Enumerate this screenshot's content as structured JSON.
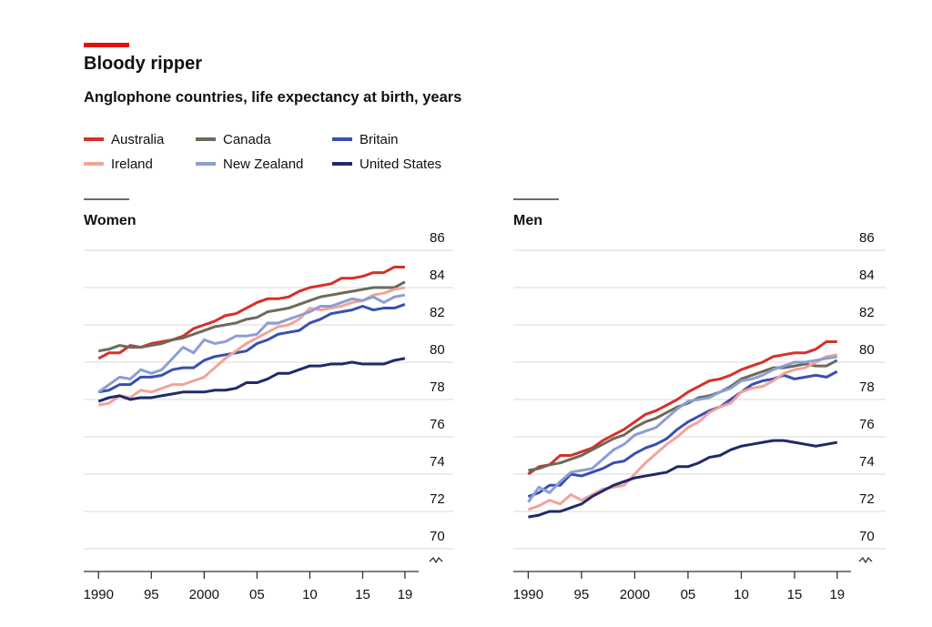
{
  "header": {
    "title": "Bloody ripper",
    "subtitle": "Anglophone countries, life expectancy at birth, years"
  },
  "chart_data": [
    {
      "type": "line",
      "title": "Women",
      "x": [
        1990,
        1991,
        1992,
        1993,
        1994,
        1995,
        1996,
        1997,
        1998,
        1999,
        2000,
        2001,
        2002,
        2003,
        2004,
        2005,
        2006,
        2007,
        2008,
        2009,
        2010,
        2011,
        2012,
        2013,
        2014,
        2015,
        2016,
        2017,
        2018,
        2019
      ],
      "xlim": [
        1988.6,
        2020.3
      ],
      "xticks": [
        1990,
        {
          "value": 1995,
          "label": "95"
        },
        2000,
        {
          "value": 2005,
          "label": "05"
        },
        {
          "value": 2010,
          "label": "10"
        },
        {
          "value": 2015,
          "label": "15"
        },
        {
          "value": 2019,
          "label": "19"
        }
      ],
      "ylim": [
        70,
        86
      ],
      "yticks": [
        70,
        72,
        74,
        76,
        78,
        80,
        82,
        84,
        86
      ],
      "grid": true,
      "series": [
        {
          "name": "Australia",
          "color": "#d7302a",
          "values": [
            80.2,
            80.5,
            80.5,
            80.9,
            80.8,
            81.0,
            81.1,
            81.2,
            81.4,
            81.8,
            82.0,
            82.2,
            82.5,
            82.6,
            82.9,
            83.2,
            83.4,
            83.4,
            83.5,
            83.8,
            84.0,
            84.1,
            84.2,
            84.5,
            84.5,
            84.6,
            84.8,
            84.8,
            85.1,
            85.1
          ]
        },
        {
          "name": "Canada",
          "color": "#6b6a5c",
          "values": [
            80.6,
            80.7,
            80.9,
            80.8,
            80.8,
            80.9,
            81.0,
            81.2,
            81.3,
            81.5,
            81.7,
            81.9,
            82.0,
            82.1,
            82.3,
            82.4,
            82.7,
            82.8,
            82.9,
            83.1,
            83.3,
            83.5,
            83.6,
            83.7,
            83.8,
            83.9,
            84.0,
            84.0,
            84.0,
            84.3
          ]
        },
        {
          "name": "Britain",
          "color": "#3a4fb0",
          "values": [
            78.4,
            78.5,
            78.8,
            78.8,
            79.2,
            79.2,
            79.3,
            79.6,
            79.7,
            79.7,
            80.1,
            80.3,
            80.4,
            80.5,
            80.6,
            81.0,
            81.2,
            81.5,
            81.6,
            81.7,
            82.1,
            82.3,
            82.6,
            82.7,
            82.8,
            83.0,
            82.8,
            82.9,
            82.9,
            83.1
          ]
        },
        {
          "name": "Ireland",
          "color": "#f2a39a",
          "values": [
            77.7,
            77.8,
            78.2,
            78.1,
            78.5,
            78.4,
            78.6,
            78.8,
            78.8,
            79.0,
            79.2,
            79.7,
            80.2,
            80.6,
            81.0,
            81.3,
            81.6,
            81.9,
            82.0,
            82.3,
            82.9,
            82.8,
            82.9,
            83.0,
            83.2,
            83.3,
            83.6,
            83.7,
            83.9,
            84.0
          ]
        },
        {
          "name": "New Zealand",
          "color": "#8b9fd3",
          "values": [
            78.4,
            78.8,
            79.2,
            79.1,
            79.6,
            79.4,
            79.6,
            80.2,
            80.8,
            80.5,
            81.2,
            81.0,
            81.1,
            81.4,
            81.4,
            81.5,
            82.1,
            82.1,
            82.3,
            82.5,
            82.7,
            83.0,
            83.0,
            83.2,
            83.4,
            83.3,
            83.5,
            83.2,
            83.5,
            83.6
          ]
        },
        {
          "name": "United States",
          "color": "#1f2a6b",
          "values": [
            77.9,
            78.1,
            78.2,
            78.0,
            78.1,
            78.1,
            78.2,
            78.3,
            78.4,
            78.4,
            78.4,
            78.5,
            78.5,
            78.6,
            78.9,
            78.9,
            79.1,
            79.4,
            79.4,
            79.6,
            79.8,
            79.8,
            79.9,
            79.9,
            80.0,
            79.9,
            79.9,
            79.9,
            80.1,
            80.2
          ]
        }
      ]
    },
    {
      "type": "line",
      "title": "Men",
      "x": [
        1990,
        1991,
        1992,
        1993,
        1994,
        1995,
        1996,
        1997,
        1998,
        1999,
        2000,
        2001,
        2002,
        2003,
        2004,
        2005,
        2006,
        2007,
        2008,
        2009,
        2010,
        2011,
        2012,
        2013,
        2014,
        2015,
        2016,
        2017,
        2018,
        2019
      ],
      "xlim": [
        1988.6,
        2020.3
      ],
      "xticks": [
        1990,
        {
          "value": 1995,
          "label": "95"
        },
        2000,
        {
          "value": 2005,
          "label": "05"
        },
        {
          "value": 2010,
          "label": "10"
        },
        {
          "value": 2015,
          "label": "15"
        },
        {
          "value": 2019,
          "label": "19"
        }
      ],
      "ylim": [
        70,
        86
      ],
      "yticks": [
        70,
        72,
        74,
        76,
        78,
        80,
        82,
        84,
        86
      ],
      "grid": true,
      "series": [
        {
          "color": "#d7302a",
          "values": [
            74.0,
            74.4,
            74.5,
            75.0,
            75.0,
            75.2,
            75.4,
            75.8,
            76.1,
            76.4,
            76.8,
            77.2,
            77.4,
            77.7,
            78.0,
            78.4,
            78.7,
            79.0,
            79.1,
            79.3,
            79.6,
            79.8,
            80.0,
            80.3,
            80.4,
            80.5,
            80.5,
            80.7,
            81.1,
            81.1
          ]
        },
        {
          "color": "#6b6a5c",
          "values": [
            74.2,
            74.3,
            74.5,
            74.6,
            74.8,
            75.0,
            75.3,
            75.6,
            75.9,
            76.1,
            76.5,
            76.8,
            77.0,
            77.3,
            77.6,
            77.8,
            78.1,
            78.2,
            78.4,
            78.7,
            79.1,
            79.3,
            79.5,
            79.7,
            79.7,
            79.8,
            79.9,
            79.8,
            79.8,
            80.1
          ]
        },
        {
          "color": "#3a4fb0",
          "values": [
            72.8,
            73.0,
            73.4,
            73.4,
            74.0,
            73.9,
            74.1,
            74.3,
            74.6,
            74.7,
            75.1,
            75.4,
            75.6,
            75.9,
            76.4,
            76.8,
            77.1,
            77.4,
            77.6,
            78.0,
            78.4,
            78.8,
            79.0,
            79.1,
            79.3,
            79.1,
            79.2,
            79.3,
            79.2,
            79.5
          ]
        },
        {
          "color": "#f2a39a",
          "values": [
            72.1,
            72.3,
            72.6,
            72.4,
            72.9,
            72.6,
            72.9,
            73.2,
            73.3,
            73.4,
            74.0,
            74.6,
            75.1,
            75.6,
            76.0,
            76.5,
            76.8,
            77.3,
            77.6,
            77.8,
            78.4,
            78.6,
            78.7,
            79.0,
            79.4,
            79.6,
            79.7,
            80.0,
            80.3,
            80.4
          ]
        },
        {
          "color": "#8b9fd3",
          "values": [
            72.5,
            73.3,
            73.0,
            73.6,
            74.1,
            74.2,
            74.3,
            74.8,
            75.3,
            75.6,
            76.1,
            76.3,
            76.5,
            77.0,
            77.5,
            77.9,
            78.0,
            78.1,
            78.4,
            78.6,
            79.0,
            79.1,
            79.3,
            79.6,
            79.8,
            80.0,
            80.0,
            80.1,
            80.2,
            80.3
          ]
        },
        {
          "color": "#1f2a6b",
          "values": [
            71.7,
            71.8,
            72.0,
            72.0,
            72.2,
            72.4,
            72.8,
            73.1,
            73.4,
            73.6,
            73.8,
            73.9,
            74.0,
            74.1,
            74.4,
            74.4,
            74.6,
            74.9,
            75.0,
            75.3,
            75.5,
            75.6,
            75.7,
            75.8,
            75.8,
            75.7,
            75.6,
            75.5,
            75.6,
            75.7
          ]
        }
      ]
    }
  ]
}
